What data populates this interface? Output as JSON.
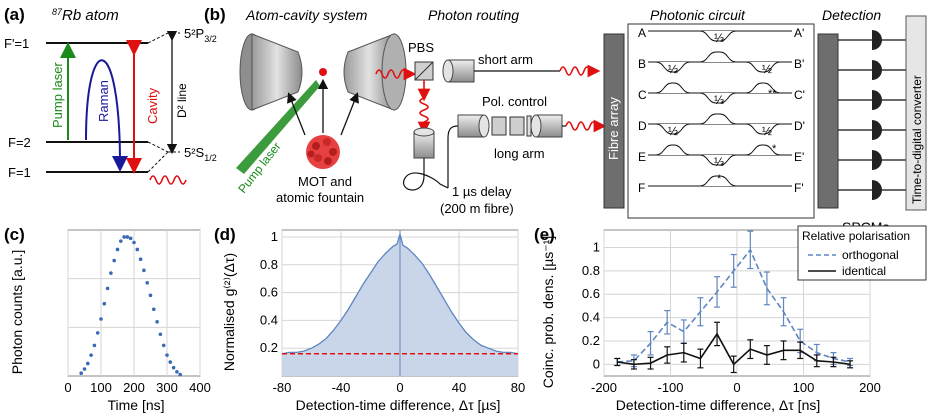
{
  "panel_a": {
    "tag": "(a)",
    "title": "87Rb atom",
    "title_sup": "87",
    "title_rest": "Rb atom",
    "levels": {
      "fprime1": "F'=1",
      "f2": "F=2",
      "f1": "F=1",
      "p32": "5²P",
      "p32_sub": "3/2",
      "s12": "5²S",
      "s12_sub": "1/2"
    },
    "pump": "Pump laser",
    "raman": "Raman",
    "cavity": "Cavity",
    "dline": "D² line",
    "colors": {
      "pump": "#1a8a1a",
      "raman": "#1a1a99",
      "cavity": "#e01010"
    }
  },
  "panel_b": {
    "tag": "(b)",
    "headings": {
      "atom_cavity": "Atom-cavity system",
      "routing": "Photon routing",
      "circuit": "Photonic circuit",
      "detection": "Detection"
    },
    "pbs": "PBS",
    "short_arm": "short arm",
    "pol_control": "Pol. control",
    "long_arm": "long arm",
    "pump_laser": "Pump laser",
    "mot_line1": "MOT and",
    "mot_line2": "atomic fountain",
    "delay_line1": "1 µs delay",
    "delay_line2": "(200 m fibre)",
    "fibre_array": "Fibre array",
    "ports_in": [
      "A",
      "B",
      "C",
      "D",
      "E",
      "F"
    ],
    "ports_out": [
      "A'",
      "B'",
      "C'",
      "D'",
      "E'",
      "F'"
    ],
    "third": "⅓",
    "half": "½",
    "marks": {
      "double_star": "**",
      "star": "*"
    },
    "spcms": "SPCMs",
    "tdc": "Time-to-digital converter"
  },
  "panel_c": {
    "tag": "(c)",
    "chart_data": {
      "type": "scatter",
      "xlabel": "Time [ns]",
      "ylabel": "Photon counts [a.u.]",
      "xlim": [
        0,
        400
      ],
      "xticks": [
        0,
        100,
        200,
        300,
        400
      ],
      "ylim": [
        0,
        1.05
      ],
      "grid": true,
      "color": "#3a6ab4",
      "x": [
        40,
        50,
        60,
        70,
        80,
        90,
        100,
        110,
        120,
        130,
        140,
        150,
        160,
        170,
        180,
        190,
        200,
        210,
        220,
        230,
        240,
        250,
        260,
        270,
        280,
        290,
        300,
        310,
        320,
        330,
        340
      ],
      "y": [
        0.02,
        0.05,
        0.09,
        0.15,
        0.22,
        0.31,
        0.41,
        0.52,
        0.63,
        0.74,
        0.83,
        0.91,
        0.97,
        1.0,
        1.0,
        0.99,
        0.96,
        0.91,
        0.84,
        0.76,
        0.67,
        0.58,
        0.48,
        0.39,
        0.3,
        0.22,
        0.15,
        0.1,
        0.06,
        0.03,
        0.01
      ]
    }
  },
  "panel_d": {
    "tag": "(d)",
    "chart_data": {
      "type": "area",
      "xlabel": "Detection-time difference, Δτ [µs]",
      "ylabel": "Normalised g⁽²⁾(Δτ)",
      "xlim": [
        -80,
        80
      ],
      "xticks": [
        -80,
        -40,
        0,
        40,
        80
      ],
      "ylim": [
        0,
        1.05
      ],
      "yticks": [
        0.2,
        0.4,
        0.6,
        0.8,
        1.0
      ],
      "grid": true,
      "fill": "#c9d6ea",
      "line": "#5f86c0",
      "baseline_color": "#e01010",
      "baseline": 0.16,
      "x": [
        -80,
        -75,
        -70,
        -65,
        -60,
        -55,
        -50,
        -45,
        -40,
        -35,
        -30,
        -25,
        -20,
        -15,
        -10,
        -5,
        -2,
        0,
        2,
        5,
        10,
        15,
        20,
        25,
        30,
        35,
        40,
        45,
        50,
        55,
        60,
        65,
        70,
        75,
        80
      ],
      "y": [
        0.16,
        0.17,
        0.17,
        0.18,
        0.2,
        0.23,
        0.27,
        0.33,
        0.4,
        0.48,
        0.57,
        0.66,
        0.74,
        0.82,
        0.88,
        0.93,
        0.95,
        1.02,
        0.94,
        0.92,
        0.87,
        0.81,
        0.73,
        0.64,
        0.55,
        0.46,
        0.38,
        0.31,
        0.26,
        0.22,
        0.2,
        0.18,
        0.17,
        0.17,
        0.16
      ]
    }
  },
  "panel_e": {
    "tag": "(e)",
    "chart_data": {
      "type": "line",
      "xlabel": "Detection-time difference, Δτ [ns]",
      "ylabel": "Coinc. prob. dens. [µs⁻¹]",
      "xlim": [
        -200,
        200
      ],
      "xticks": [
        -200,
        -100,
        0,
        100,
        200
      ],
      "ylim": [
        -0.1,
        1.15
      ],
      "yticks": [
        0,
        0.2,
        0.4,
        0.6,
        0.8,
        1.0
      ],
      "grid": true,
      "legend_title": "Relative polarisation",
      "legend_placement": "top-right",
      "x": [
        -180,
        -155,
        -130,
        -105,
        -80,
        -55,
        -30,
        -5,
        20,
        45,
        70,
        95,
        120,
        145,
        170
      ],
      "series": [
        {
          "name": "orthogonal",
          "color": "#5f86c0",
          "dash": true,
          "values": [
            0.02,
            0.03,
            0.18,
            0.36,
            0.28,
            0.45,
            0.62,
            0.8,
            0.98,
            0.65,
            0.45,
            0.2,
            0.1,
            0.05,
            0.02
          ],
          "errors": [
            0.03,
            0.05,
            0.1,
            0.1,
            0.1,
            0.12,
            0.13,
            0.14,
            0.16,
            0.14,
            0.12,
            0.1,
            0.07,
            0.05,
            0.03
          ]
        },
        {
          "name": "identical",
          "color": "#111111",
          "dash": false,
          "values": [
            0.02,
            0.0,
            0.01,
            0.08,
            0.1,
            0.05,
            0.26,
            0.0,
            0.13,
            0.08,
            0.12,
            0.12,
            0.03,
            0.02,
            0.0
          ],
          "errors": [
            0.03,
            0.04,
            0.05,
            0.07,
            0.08,
            0.08,
            0.1,
            0.07,
            0.08,
            0.08,
            0.08,
            0.07,
            0.05,
            0.04,
            0.03
          ]
        }
      ]
    }
  }
}
